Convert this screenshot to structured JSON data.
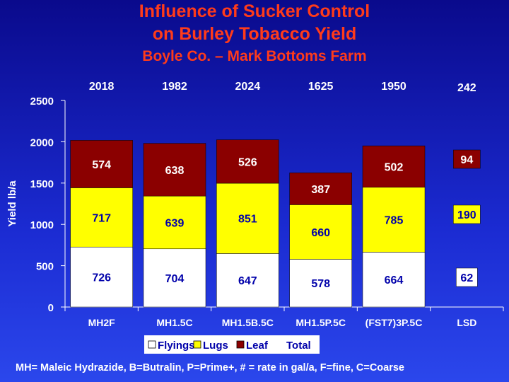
{
  "titles": {
    "line1": "Influence of Sucker Control",
    "line2": "on Burley Tobacco Yield",
    "line3": "Boyle Co. – Mark Bottoms Farm"
  },
  "footnote": "MH= Maleic Hydrazide, B=Butralin, P=Prime+, # = rate in gal/a, F=fine, C=Coarse",
  "colors": {
    "flyings": "#ffffff",
    "lugs": "#ffff00",
    "leaf": "#8b0000",
    "axis_text": "#ffffff",
    "bar_label_flyings": "#0000aa",
    "bar_label_lugs": "#0000aa",
    "bar_label_leaf": "#ffffff",
    "total_label": "#ffffff"
  },
  "chart_data": {
    "type": "bar",
    "stacked": true,
    "ylabel": "Yield lb/a",
    "ylim": [
      0,
      2500
    ],
    "yticks": [
      0,
      500,
      1000,
      1500,
      2000,
      2500
    ],
    "categories": [
      "MH2F",
      "MH1.5C",
      "MH1.5B.5C",
      "MH1.5P.5C",
      "(FST7)3P.5C"
    ],
    "series": [
      {
        "name": "Flyings",
        "values": [
          726,
          704,
          647,
          578,
          664
        ]
      },
      {
        "name": "Lugs",
        "values": [
          717,
          639,
          851,
          660,
          785
        ]
      },
      {
        "name": "Leaf",
        "values": [
          574,
          638,
          526,
          387,
          502
        ]
      }
    ],
    "series_labels": [
      [
        "726",
        "704",
        "647",
        "578",
        "664"
      ],
      [
        "717",
        "639",
        "851",
        "660",
        "785"
      ],
      [
        "574",
        "638",
        "526",
        "387",
        "502"
      ]
    ],
    "totals": [
      "2018",
      "1982",
      "2024",
      "1625",
      "1950"
    ],
    "lsd": {
      "category": "LSD",
      "total": "242",
      "values": {
        "Flyings": "62",
        "Lugs": "190",
        "Leaf": "94"
      }
    },
    "legend": {
      "position": "bottom",
      "items": [
        "Flyings",
        "Lugs",
        "Leaf"
      ],
      "total_label": "Total"
    },
    "grid": false
  }
}
